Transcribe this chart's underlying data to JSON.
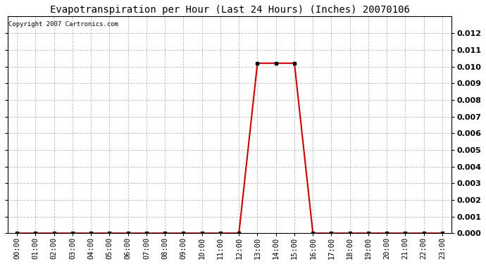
{
  "title": "Evapotranspiration per Hour (Last 24 Hours) (Inches) 20070106",
  "copyright": "Copyright 2007 Cartronics.com",
  "hours": [
    "00:00",
    "01:00",
    "02:00",
    "03:00",
    "04:00",
    "05:00",
    "06:00",
    "07:00",
    "08:00",
    "09:00",
    "10:00",
    "11:00",
    "12:00",
    "13:00",
    "14:00",
    "15:00",
    "16:00",
    "17:00",
    "18:00",
    "19:00",
    "20:00",
    "21:00",
    "22:00",
    "23:00"
  ],
  "values": [
    0.0,
    0.0,
    0.0,
    0.0,
    0.0,
    0.0,
    0.0,
    0.0,
    0.0,
    0.0,
    0.0,
    0.0,
    0.0,
    0.0102,
    0.0102,
    0.0102,
    0.0,
    0.0,
    0.0,
    0.0,
    0.0,
    0.0,
    0.0,
    0.0
  ],
  "line_color": "#cc0000",
  "marker": "s",
  "marker_size": 2.5,
  "marker_color": "#000000",
  "ylim": [
    0,
    0.013
  ],
  "yticks": [
    0.0,
    0.001,
    0.002,
    0.003,
    0.004,
    0.005,
    0.006,
    0.007,
    0.008,
    0.009,
    0.01,
    0.011,
    0.012
  ],
  "grid_color": "#bbbbbb",
  "grid_linestyle": "--",
  "bg_color": "#ffffff",
  "title_fontsize": 10,
  "copyright_fontsize": 6.5,
  "tick_fontsize": 7.5,
  "ytick_fontsize": 8
}
